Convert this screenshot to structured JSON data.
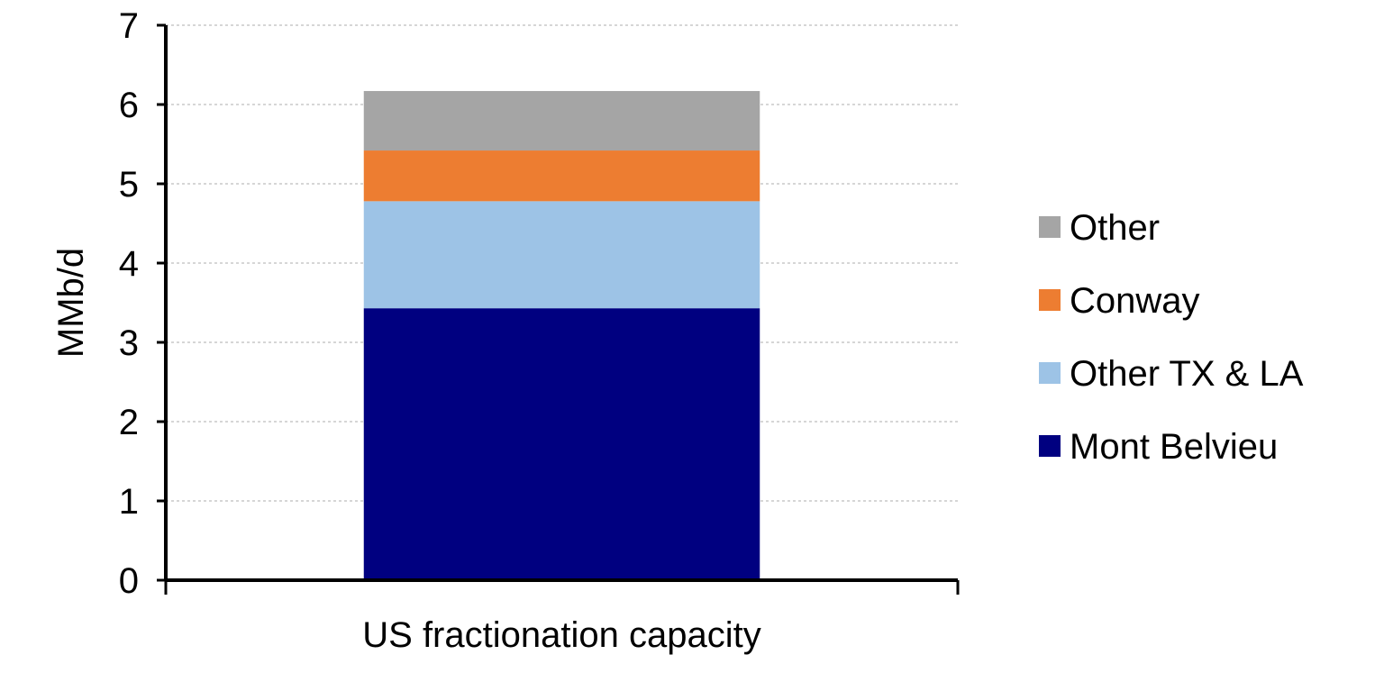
{
  "chart_data": {
    "type": "bar",
    "stacked": true,
    "categories": [
      "US fractionation capacity"
    ],
    "series": [
      {
        "name": "Mont Belvieu",
        "values": [
          3.43
        ],
        "color": "#000080"
      },
      {
        "name": "Other TX & LA",
        "values": [
          1.35
        ],
        "color": "#9DC3E6"
      },
      {
        "name": "Conway",
        "values": [
          0.64
        ],
        "color": "#ED7D31"
      },
      {
        "name": "Other",
        "values": [
          0.75
        ],
        "color": "#A5A5A5"
      }
    ],
    "ylabel": "MMb/d",
    "xlabel": "",
    "ylim": [
      0,
      7
    ],
    "yticks": [
      "0",
      "1",
      "2",
      "3",
      "4",
      "5",
      "6",
      "7"
    ],
    "grid": true,
    "legend": {
      "position": "right",
      "order": [
        "Other",
        "Conway",
        "Other TX & LA",
        "Mont Belvieu"
      ]
    }
  }
}
